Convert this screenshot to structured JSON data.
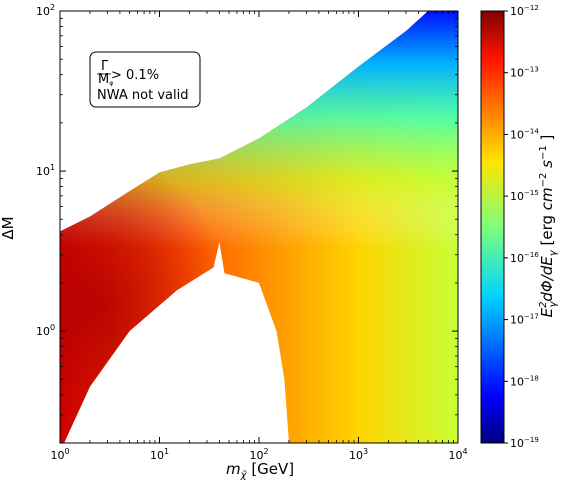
{
  "chart_data": {
    "type": "heatmap",
    "title": "",
    "xlabel": {
      "main": "m",
      "sub": "χ̃",
      "rest": " [GeV]"
    },
    "ylabel": "ΔM",
    "x_scale": "log",
    "y_scale": "log",
    "xlim": [
      1,
      10000
    ],
    "ylim": [
      0.2,
      100
    ],
    "x_ticks": [
      {
        "value": 1,
        "base": "10",
        "exp": "0"
      },
      {
        "value": 10,
        "base": "10",
        "exp": "1"
      },
      {
        "value": 100,
        "base": "10",
        "exp": "2"
      },
      {
        "value": 1000,
        "base": "10",
        "exp": "3"
      },
      {
        "value": 10000,
        "base": "10",
        "exp": "4"
      }
    ],
    "y_ticks": [
      {
        "value": 1,
        "base": "10",
        "exp": "0"
      },
      {
        "value": 10,
        "base": "10",
        "exp": "1"
      },
      {
        "value": 100,
        "base": "10",
        "exp": "2"
      }
    ],
    "colorbar": {
      "label": "E_γ^2 dΦ/dE_γ [erg cm^-2 s^-1]",
      "scale": "log",
      "range": [
        1e-19,
        1e-12
      ],
      "colormap": "jet",
      "ticks": [
        {
          "value": 1e-12,
          "base": "10",
          "exp": "−12"
        },
        {
          "value": 1e-13,
          "base": "10",
          "exp": "−13"
        },
        {
          "value": 1e-14,
          "base": "10",
          "exp": "−14"
        },
        {
          "value": 1e-15,
          "base": "10",
          "exp": "−15"
        },
        {
          "value": 1e-16,
          "base": "10",
          "exp": "−16"
        },
        {
          "value": 1e-17,
          "base": "10",
          "exp": "−17"
        },
        {
          "value": 1e-18,
          "base": "10",
          "exp": "−18"
        },
        {
          "value": 1e-19,
          "base": "10",
          "exp": "−19"
        }
      ]
    },
    "annotation": {
      "ratio_num": "Γ",
      "ratio_den": "M",
      "ratio_den_sub": "φ",
      "condition": " > 0.1%",
      "line2": "NWA not valid"
    },
    "valid_region_upper_boundary": [
      {
        "x": 1,
        "y": 4.2
      },
      {
        "x": 2,
        "y": 5.2
      },
      {
        "x": 5,
        "y": 7.5
      },
      {
        "x": 10,
        "y": 9.8
      },
      {
        "x": 20,
        "y": 11.0
      },
      {
        "x": 40,
        "y": 12.0
      },
      {
        "x": 100,
        "y": 16.0
      },
      {
        "x": 300,
        "y": 25.0
      },
      {
        "x": 1000,
        "y": 45.0
      },
      {
        "x": 3000,
        "y": 75.0
      },
      {
        "x": 5000,
        "y": 100.0
      }
    ],
    "excluded_region_lower_left": [
      {
        "x": 1.1,
        "y": 0.2
      },
      {
        "x": 2,
        "y": 0.45
      },
      {
        "x": 5,
        "y": 1.0
      },
      {
        "x": 15,
        "y": 1.8
      },
      {
        "x": 35,
        "y": 2.5
      },
      {
        "x": 40,
        "y": 3.6
      },
      {
        "x": 45,
        "y": 2.3
      },
      {
        "x": 100,
        "y": 2.0
      },
      {
        "x": 150,
        "y": 1.0
      },
      {
        "x": 180,
        "y": 0.5
      },
      {
        "x": 200,
        "y": 0.2
      }
    ],
    "flux_samples": [
      {
        "x": 1.5,
        "y": 1.3,
        "flux": 2e-13
      },
      {
        "x": 10,
        "y": 2.0,
        "flux": 5e-14
      },
      {
        "x": 100,
        "y": 3.0,
        "flux": 1e-14
      },
      {
        "x": 300,
        "y": 0.5,
        "flux": 3e-15
      },
      {
        "x": 1000,
        "y": 2.0,
        "flux": 1e-15
      },
      {
        "x": 10,
        "y": 8.0,
        "flux": 3e-16
      },
      {
        "x": 1000,
        "y": 10.0,
        "flux": 3e-17
      },
      {
        "x": 5000,
        "y": 80.0,
        "flux": 1e-18
      }
    ]
  }
}
